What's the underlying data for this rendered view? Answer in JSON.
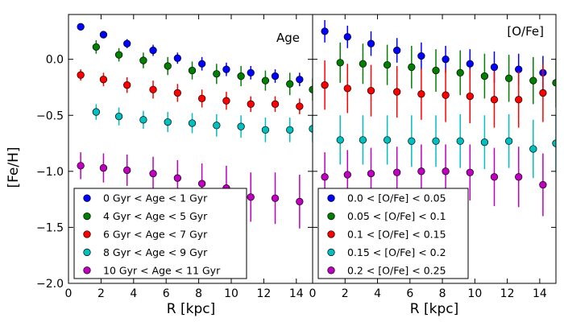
{
  "chart_data": [
    {
      "type": "scatter",
      "title": "Age",
      "xlabel": "R [kpc]",
      "ylabel": "[Fe/H]",
      "xlim": [
        0,
        15
      ],
      "ylim": [
        -2.0,
        0.4
      ],
      "x_ticks": [
        0,
        2,
        4,
        6,
        8,
        10,
        12,
        14
      ],
      "y_ticks": [
        -2.0,
        -1.5,
        -1.0,
        -0.5,
        0.0
      ],
      "x_tick_labels": [
        "0",
        "2",
        "4",
        "6",
        "8",
        "10",
        "12",
        "14"
      ],
      "y_tick_labels": [
        "−2.0",
        "−1.5",
        "−1.0",
        "−0.5",
        "0.0"
      ],
      "legend_position": "lower-left",
      "series": [
        {
          "name": "0 Gyr < Age < 1 Gyr",
          "color": "#0000ff",
          "x": [
            0.75,
            2.15,
            3.6,
            5.2,
            6.7,
            8.2,
            9.7,
            11.2,
            12.7,
            14.2
          ],
          "y": [
            0.29,
            0.22,
            0.14,
            0.08,
            0.01,
            -0.04,
            -0.09,
            -0.12,
            -0.15,
            -0.18
          ],
          "err": [
            0.02,
            0.03,
            0.04,
            0.05,
            0.05,
            0.06,
            0.06,
            0.06,
            0.06,
            0.06
          ]
        },
        {
          "name": "4 Gyr < Age < 5 Gyr",
          "color": "#007f00",
          "x": [
            1.7,
            3.1,
            4.6,
            6.1,
            7.6,
            9.1,
            10.6,
            12.1,
            13.6,
            15.0
          ],
          "y": [
            0.11,
            0.04,
            -0.01,
            -0.06,
            -0.1,
            -0.13,
            -0.15,
            -0.19,
            -0.22,
            -0.27
          ],
          "err": [
            0.06,
            0.06,
            0.07,
            0.08,
            0.08,
            0.09,
            0.09,
            0.09,
            0.1,
            0.1
          ]
        },
        {
          "name": "6 Gyr < Age < 7 Gyr",
          "color": "#ff0000",
          "x": [
            0.75,
            2.15,
            3.6,
            5.2,
            6.7,
            8.2,
            9.7,
            11.2,
            12.7,
            14.2
          ],
          "y": [
            -0.14,
            -0.18,
            -0.23,
            -0.27,
            -0.3,
            -0.35,
            -0.37,
            -0.4,
            -0.4,
            -0.42
          ],
          "err": [
            0.05,
            0.06,
            0.07,
            0.08,
            0.08,
            0.08,
            0.08,
            0.07,
            0.07,
            0.07
          ]
        },
        {
          "name": "8 Gyr < Age < 9 Gyr",
          "color": "#00bfbf",
          "x": [
            1.7,
            3.1,
            4.6,
            6.1,
            7.6,
            9.1,
            10.6,
            12.1,
            13.6,
            15.0
          ],
          "y": [
            -0.47,
            -0.51,
            -0.54,
            -0.56,
            -0.57,
            -0.59,
            -0.6,
            -0.63,
            -0.63,
            -0.62
          ],
          "err": [
            0.07,
            0.08,
            0.08,
            0.09,
            0.09,
            0.1,
            0.1,
            0.11,
            0.11,
            0.12
          ]
        },
        {
          "name": "10 Gyr < Age < 11 Gyr",
          "color": "#bf00bf",
          "x": [
            0.75,
            2.15,
            3.6,
            5.2,
            6.7,
            8.2,
            9.7,
            11.2,
            12.7,
            14.2
          ],
          "y": [
            -0.95,
            -0.97,
            -0.99,
            -1.02,
            -1.06,
            -1.11,
            -1.15,
            -1.23,
            -1.24,
            -1.27
          ],
          "err": [
            0.12,
            0.13,
            0.14,
            0.15,
            0.16,
            0.18,
            0.2,
            0.22,
            0.23,
            0.24
          ]
        }
      ]
    },
    {
      "type": "scatter",
      "title": "[O/Fe]",
      "xlabel": "R [kpc]",
      "ylabel": "",
      "xlim": [
        0,
        15
      ],
      "ylim": [
        -2.0,
        0.4
      ],
      "x_ticks": [
        0,
        2,
        4,
        6,
        8,
        10,
        12,
        14
      ],
      "x_tick_labels": [
        "0",
        "2",
        "4",
        "6",
        "8",
        "10",
        "12",
        "14"
      ],
      "legend_position": "lower-left",
      "series": [
        {
          "name": "0.0 < [O/Fe] < 0.05",
          "color": "#0000ff",
          "x": [
            0.75,
            2.15,
            3.6,
            5.2,
            6.7,
            8.2,
            9.7,
            11.2,
            12.7,
            14.2
          ],
          "y": [
            0.25,
            0.2,
            0.14,
            0.08,
            0.03,
            0.0,
            -0.04,
            -0.07,
            -0.09,
            -0.12
          ],
          "err": [
            0.1,
            0.1,
            0.11,
            0.11,
            0.12,
            0.12,
            0.13,
            0.14,
            0.14,
            0.15
          ]
        },
        {
          "name": "0.05 < [O/Fe] < 0.1",
          "color": "#007f00",
          "x": [
            1.7,
            3.1,
            4.6,
            6.1,
            7.6,
            9.1,
            10.6,
            12.1,
            13.6,
            15.0
          ],
          "y": [
            -0.03,
            -0.04,
            -0.05,
            -0.07,
            -0.1,
            -0.12,
            -0.15,
            -0.17,
            -0.19,
            -0.21
          ],
          "err": [
            0.18,
            0.18,
            0.18,
            0.19,
            0.19,
            0.2,
            0.2,
            0.21,
            0.21,
            0.22
          ]
        },
        {
          "name": "0.1 < [O/Fe] < 0.15",
          "color": "#ff0000",
          "x": [
            0.75,
            2.15,
            3.6,
            5.2,
            6.7,
            8.2,
            9.7,
            11.2,
            12.7,
            14.2
          ],
          "y": [
            -0.23,
            -0.26,
            -0.28,
            -0.29,
            -0.31,
            -0.32,
            -0.33,
            -0.36,
            -0.36,
            -0.3
          ],
          "err": [
            0.22,
            0.22,
            0.23,
            0.23,
            0.23,
            0.24,
            0.24,
            0.25,
            0.25,
            0.26
          ]
        },
        {
          "name": "0.15 < [O/Fe] < 0.2",
          "color": "#00bfbf",
          "x": [
            1.7,
            3.1,
            4.6,
            6.1,
            7.6,
            9.1,
            10.6,
            12.1,
            13.6,
            15.0
          ],
          "y": [
            -0.72,
            -0.72,
            -0.72,
            -0.73,
            -0.73,
            -0.73,
            -0.74,
            -0.73,
            -0.8,
            -0.75
          ],
          "err": [
            0.22,
            0.22,
            0.22,
            0.23,
            0.23,
            0.24,
            0.24,
            0.24,
            0.26,
            0.26
          ]
        },
        {
          "name": "0.2 < [O/Fe] < 0.25",
          "color": "#bf00bf",
          "x": [
            0.75,
            2.15,
            3.6,
            5.2,
            6.7,
            8.2,
            9.7,
            11.2,
            12.7,
            14.2
          ],
          "y": [
            -1.05,
            -1.03,
            -1.02,
            -1.01,
            -1.0,
            -1.0,
            -1.01,
            -1.05,
            -1.05,
            -1.12
          ],
          "err": [
            0.22,
            0.22,
            0.23,
            0.23,
            0.24,
            0.24,
            0.25,
            0.26,
            0.27,
            0.28
          ]
        }
      ]
    }
  ]
}
